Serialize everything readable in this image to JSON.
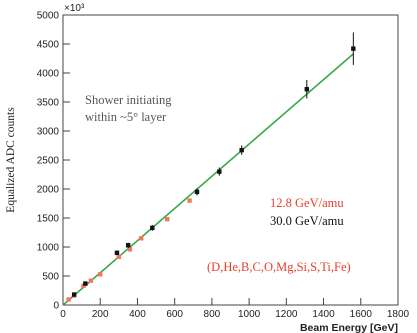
{
  "chart_data": {
    "type": "scatter",
    "xlabel": "Beam Energy [GeV]",
    "ylabel": "Equalized ADC counts",
    "y_exponent_label": "×10³",
    "xlim": [
      0,
      1800
    ],
    "ylim": [
      0,
      5000
    ],
    "x_ticks": [
      0,
      200,
      400,
      600,
      800,
      1000,
      1200,
      1400,
      1600,
      1800
    ],
    "y_ticks": [
      0,
      500,
      1000,
      1500,
      2000,
      2500,
      3000,
      3500,
      4000,
      4500,
      5000
    ],
    "grid": false,
    "series": [
      {
        "name": "12.8 GeV/amu",
        "color": "#f07860",
        "marker": "filled-square",
        "points": [
          {
            "x": 30,
            "y": 95
          },
          {
            "x": 60,
            "y": 165
          },
          {
            "x": 110,
            "y": 330
          },
          {
            "x": 150,
            "y": 420
          },
          {
            "x": 200,
            "y": 530
          },
          {
            "x": 300,
            "y": 830
          },
          {
            "x": 360,
            "y": 960
          },
          {
            "x": 420,
            "y": 1150
          },
          {
            "x": 560,
            "y": 1480
          },
          {
            "x": 680,
            "y": 1800
          }
        ]
      },
      {
        "name": "30.0 GeV/amu",
        "color": "#111111",
        "marker": "filled-square",
        "points": [
          {
            "x": 60,
            "y": 180,
            "err": 25
          },
          {
            "x": 120,
            "y": 370,
            "err": 30
          },
          {
            "x": 290,
            "y": 900,
            "err": 40
          },
          {
            "x": 350,
            "y": 1030,
            "err": 45
          },
          {
            "x": 480,
            "y": 1330,
            "err": 50
          },
          {
            "x": 720,
            "y": 1950,
            "err": 60
          },
          {
            "x": 840,
            "y": 2300,
            "err": 70
          },
          {
            "x": 960,
            "y": 2670,
            "err": 80
          },
          {
            "x": 1310,
            "y": 3720,
            "err": 160
          },
          {
            "x": 1560,
            "y": 4420,
            "err": 280
          }
        ]
      }
    ],
    "fit_line": {
      "color": "#3aa84a",
      "x": [
        0,
        1560
      ],
      "y": [
        0,
        4330
      ]
    },
    "annotations": {
      "shower_line1": "Shower initiating",
      "shower_line2": "within ~5° layer",
      "energy_red": "12.8 GeV/amu",
      "energy_black": "30.0 GeV/amu",
      "ions": "(D,He,B,C,O,Mg,Si,S,Ti,Fe)",
      "red_color": "#e8402c",
      "black_color": "#111111"
    }
  }
}
